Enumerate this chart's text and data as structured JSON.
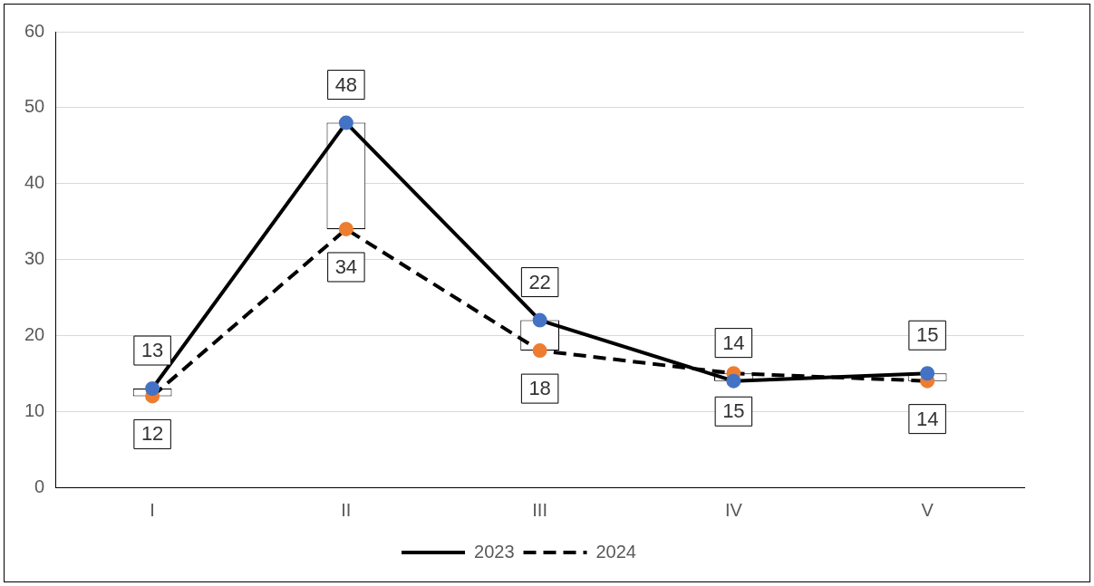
{
  "chart_data": {
    "type": "line",
    "categories": [
      "I",
      "II",
      "III",
      "IV",
      "V"
    ],
    "series": [
      {
        "name": "2023",
        "color": "#000000",
        "colors": [
          "#4472c4",
          "#4472c4",
          "#4472c4",
          "#4472c4",
          "#4472c4"
        ],
        "values": [
          13,
          48,
          22,
          14,
          15
        ],
        "line_style": "solid"
      },
      {
        "name": "2024",
        "color": "#000000",
        "colors": [
          "#ed7d31",
          "#ed7d31",
          "#ed7d31",
          "#ed7d31",
          "#ed7d31"
        ],
        "values": [
          12,
          34,
          18,
          15,
          14
        ],
        "line_style": "dashed"
      },
      {
        "type": "bar",
        "color": "#ffffff",
        "values": [
          1,
          14,
          4,
          1,
          1
        ],
        "base": [
          12,
          34,
          18,
          14,
          14
        ],
        "value_labels": [
          null,
          null,
          null,
          null,
          null
        ]
      }
    ],
    "ylim": [
      0,
      60
    ],
    "yticks": [
      0,
      10,
      20,
      30,
      40,
      50,
      60
    ],
    "grid": "y",
    "legend": "bottom",
    "marker": "circle",
    "data_labels": true
  }
}
